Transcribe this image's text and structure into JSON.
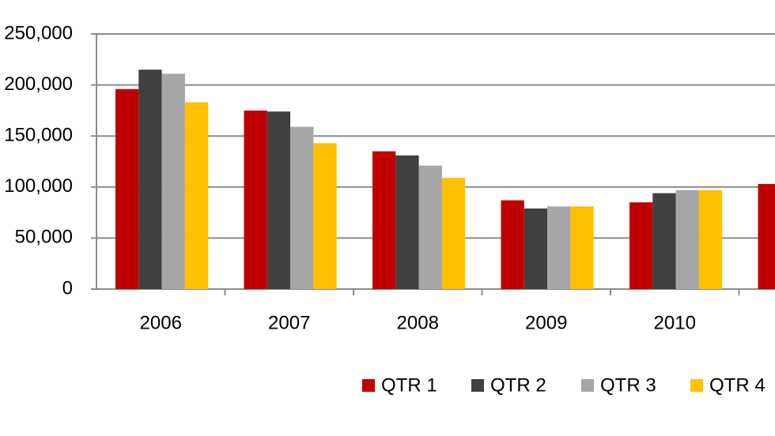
{
  "chart_data": {
    "type": "bar",
    "categories": [
      "2006",
      "2007",
      "2008",
      "2009",
      "2010",
      null
    ],
    "series": [
      {
        "name": "QTR 1",
        "color": "#c00000",
        "values": [
          196000,
          175000,
          135000,
          87000,
          85000,
          103000
        ]
      },
      {
        "name": "QTR 2",
        "color": "#404040",
        "values": [
          215000,
          174000,
          131000,
          79000,
          94000,
          null
        ]
      },
      {
        "name": "QTR 3",
        "color": "#a6a6a6",
        "values": [
          211000,
          159000,
          121000,
          81000,
          97000,
          null
        ]
      },
      {
        "name": "QTR 4",
        "color": "#ffc000",
        "values": [
          183000,
          143000,
          109000,
          81000,
          97000,
          null
        ]
      }
    ],
    "ylim": [
      0,
      250000
    ],
    "yticks": [
      0,
      {
        "value": 50000,
        "label": "50,000"
      },
      {
        "value": 100000,
        "label": "100,000"
      },
      {
        "value": 150000,
        "label": "150,000"
      },
      {
        "value": 200000,
        "label": "200,000"
      },
      {
        "value": 250000,
        "label": "250,000"
      }
    ],
    "grid": true,
    "legend": "bottom"
  }
}
